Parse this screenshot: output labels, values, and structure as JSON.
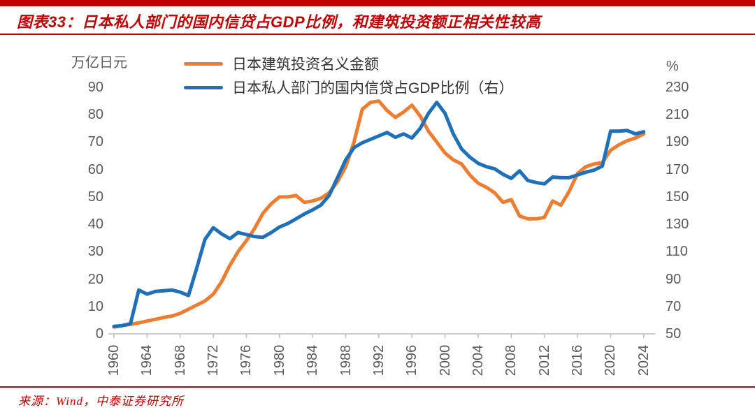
{
  "title": "图表33：日本私人部门的国内信贷占GDP比例，和建筑投资额正相关性较高",
  "source": "来源：Wind，中泰证券研究所",
  "colors": {
    "accent_red": "#C00000",
    "axis_gray": "#BFBFBF",
    "tick_label_gray": "#595959",
    "construction_orange": "#ED7D31",
    "credit_blue": "#1F70B8"
  },
  "chart_data": {
    "type": "line",
    "legend_position": "top",
    "grid": false,
    "left_axis": {
      "unit": "万亿日元",
      "min": 0,
      "max": 90,
      "step": 10,
      "ticks": [
        90,
        80,
        70,
        60,
        50,
        40,
        30,
        20,
        10,
        0
      ]
    },
    "right_axis": {
      "unit": "%",
      "min": 50,
      "max": 230,
      "step": 20,
      "ticks": [
        230,
        210,
        190,
        170,
        150,
        130,
        110,
        90,
        70,
        50
      ]
    },
    "x_ticks": [
      1960,
      1964,
      1968,
      1972,
      1976,
      1980,
      1984,
      1988,
      1992,
      1996,
      2000,
      2004,
      2008,
      2012,
      2016,
      2020,
      2024
    ],
    "years": [
      1960,
      1961,
      1962,
      1963,
      1964,
      1965,
      1966,
      1967,
      1968,
      1969,
      1970,
      1971,
      1972,
      1973,
      1974,
      1975,
      1976,
      1977,
      1978,
      1979,
      1980,
      1981,
      1982,
      1983,
      1984,
      1985,
      1986,
      1987,
      1988,
      1989,
      1990,
      1991,
      1992,
      1993,
      1994,
      1995,
      1996,
      1997,
      1998,
      1999,
      2000,
      2001,
      2002,
      2003,
      2004,
      2005,
      2006,
      2007,
      2008,
      2009,
      2010,
      2011,
      2012,
      2013,
      2014,
      2015,
      2016,
      2017,
      2018,
      2019,
      2020,
      2021,
      2022,
      2023,
      2024
    ],
    "series": [
      {
        "name": "日本建筑投资名义金额",
        "axis": "left",
        "color": "#ED7D31",
        "values": [
          2.5,
          3,
          3.5,
          4,
          4.7,
          5.3,
          6,
          6.5,
          7.5,
          9,
          10.5,
          12,
          14.5,
          19,
          25,
          30,
          34,
          38.5,
          44,
          47.5,
          50,
          50,
          50.5,
          48,
          48.5,
          49.5,
          51.5,
          55.5,
          61,
          70,
          82,
          84.5,
          85,
          81.5,
          79,
          81,
          83.5,
          79.5,
          74,
          70,
          66,
          63.5,
          62,
          58,
          55,
          53.5,
          51.5,
          48,
          49,
          43,
          42,
          42,
          42.5,
          48.5,
          47,
          52,
          58.5,
          61,
          62,
          62.5,
          67,
          69,
          70.5,
          71.5,
          73
        ]
      },
      {
        "name": "日本私人部门的国内信贷占GDP比例（右）",
        "axis": "right",
        "color": "#1F70B8",
        "values": [
          55.5,
          56,
          57.5,
          82,
          79,
          81,
          81.5,
          82,
          80.5,
          78,
          98,
          119,
          127.5,
          123,
          119.5,
          124,
          122.5,
          121,
          120.5,
          124,
          128,
          130.5,
          134,
          137.5,
          140.5,
          144,
          151,
          164,
          177,
          186,
          189.5,
          192,
          194.5,
          197,
          193.5,
          196,
          193,
          200,
          211,
          219,
          211,
          196,
          185,
          179,
          174.5,
          172,
          170.5,
          166.5,
          163.5,
          169,
          162,
          160.5,
          159.5,
          164.5,
          164,
          164,
          166,
          168,
          169.5,
          172.5,
          198,
          198,
          198.5,
          196,
          197.5
        ]
      }
    ]
  }
}
